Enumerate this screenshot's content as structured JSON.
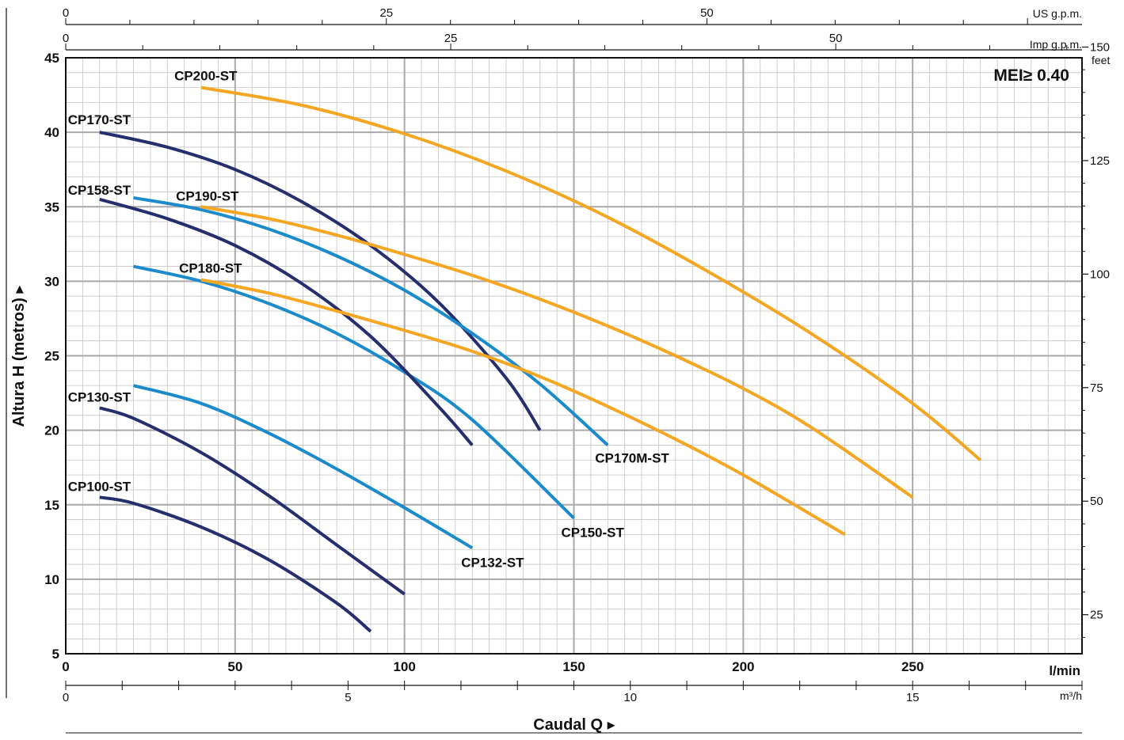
{
  "chart_data": {
    "type": "line",
    "mei_label": "MEI≥ 0.40",
    "xlabel": "Caudal Q",
    "ylabel": "Altura H (metros)",
    "x_unit": "l/min",
    "y_right_unit": "feet",
    "xlim": [
      0,
      300
    ],
    "ylim": [
      5,
      45
    ],
    "x_ticks": [
      "0",
      "50",
      "100",
      "150",
      "200",
      "250"
    ],
    "y_ticks": [
      "5",
      "10",
      "15",
      "20",
      "25",
      "30",
      "35",
      "40",
      "45"
    ],
    "y_right_ticks": [
      "25",
      "50",
      "75",
      "100",
      "125",
      "150"
    ],
    "top_axes": [
      {
        "unit": "US g.p.m.",
        "ticks": [
          "0",
          "25",
          "50"
        ]
      },
      {
        "unit": "Imp g.p.m.",
        "ticks": [
          "0",
          "25",
          "50"
        ]
      }
    ],
    "bottom_axis2": {
      "unit": "m³/h",
      "ticks": [
        "0",
        "5",
        "10",
        "15"
      ]
    },
    "colors": {
      "dark": "#262f6e",
      "blue": "#1b8bcc",
      "orange": "#f5a623",
      "grid": "#c4c4c4"
    },
    "series": [
      {
        "name": "CP100-ST",
        "color": "dark",
        "x": [
          10,
          20,
          40,
          60,
          80,
          90
        ],
        "y": [
          15.5,
          15.1,
          13.5,
          11.3,
          8.4,
          6.5
        ]
      },
      {
        "name": "CP130-ST",
        "color": "dark",
        "x": [
          10,
          20,
          40,
          60,
          80,
          100
        ],
        "y": [
          21.5,
          20.8,
          18.5,
          15.6,
          12.3,
          9.0
        ]
      },
      {
        "name": "CP132-ST",
        "color": "blue",
        "x": [
          20,
          40,
          60,
          80,
          100,
          120
        ],
        "y": [
          23.0,
          21.8,
          19.8,
          17.4,
          14.8,
          12.1
        ]
      },
      {
        "name": "CP150-ST",
        "color": "blue",
        "x": [
          20,
          40,
          60,
          80,
          100,
          120,
          150
        ],
        "y": [
          31.0,
          30.0,
          28.5,
          26.5,
          23.9,
          20.7,
          14.1
        ]
      },
      {
        "name": "CP158-ST",
        "color": "dark",
        "x": [
          10,
          30,
          50,
          70,
          90,
          110,
          120
        ],
        "y": [
          35.5,
          34.2,
          32.4,
          29.8,
          26.3,
          21.6,
          19.0
        ]
      },
      {
        "name": "CP170-ST",
        "color": "dark",
        "x": [
          10,
          30,
          50,
          70,
          90,
          110,
          130,
          140
        ],
        "y": [
          40.0,
          39.0,
          37.5,
          35.3,
          32.4,
          28.6,
          23.5,
          20.0
        ]
      },
      {
        "name": "CP170M-ST",
        "color": "blue",
        "x": [
          20,
          40,
          60,
          80,
          100,
          120,
          140,
          160
        ],
        "y": [
          35.6,
          34.8,
          33.5,
          31.7,
          29.4,
          26.5,
          23.1,
          19.0
        ]
      },
      {
        "name": "CP180-ST",
        "color": "orange",
        "x": [
          40,
          60,
          80,
          100,
          120,
          140,
          160,
          180,
          200,
          230
        ],
        "y": [
          30.1,
          29.2,
          28.0,
          26.7,
          25.3,
          23.6,
          21.6,
          19.4,
          17.0,
          13.0
        ]
      },
      {
        "name": "CP190-ST",
        "color": "orange",
        "x": [
          40,
          60,
          80,
          100,
          120,
          140,
          160,
          180,
          200,
          220,
          250
        ],
        "y": [
          35.0,
          34.2,
          33.1,
          31.8,
          30.4,
          28.8,
          27.0,
          25.0,
          22.8,
          20.2,
          15.5
        ]
      },
      {
        "name": "CP200-ST",
        "color": "orange",
        "x": [
          40,
          70,
          100,
          130,
          160,
          190,
          220,
          250,
          270
        ],
        "y": [
          43.0,
          41.8,
          39.9,
          37.4,
          34.3,
          30.6,
          26.5,
          21.8,
          18.0
        ]
      }
    ]
  }
}
